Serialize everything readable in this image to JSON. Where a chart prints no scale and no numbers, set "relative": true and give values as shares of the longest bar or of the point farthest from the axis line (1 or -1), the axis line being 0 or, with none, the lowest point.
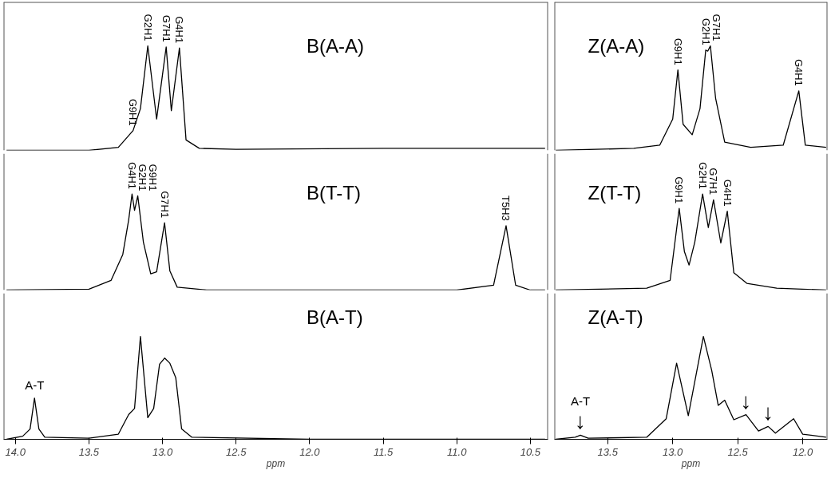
{
  "chart_data": [
    {
      "type": "line",
      "title": "B(A-A)",
      "relative": true,
      "color": "#000000",
      "grid": false,
      "tick_labels": false,
      "xlim": [
        14.08,
        10.38
      ],
      "x": [
        14.06,
        13.5,
        13.3,
        13.2,
        13.15,
        13.1,
        13.04,
        12.975,
        12.94,
        12.885,
        12.84,
        12.75,
        12.5,
        11.5,
        10.4
      ],
      "values": [
        0,
        0,
        0.03,
        0.19,
        0.4,
        1,
        0.3,
        0.99,
        0.38,
        0.98,
        0.1,
        0.02,
        0.01,
        0.02,
        0.02
      ],
      "annotations": [
        {
          "text": "G9H1",
          "x": 13.2,
          "y": 0.19
        },
        {
          "text": "G2H1",
          "x": 13.1,
          "y": 1
        },
        {
          "text": "G7H1",
          "x": 12.975,
          "y": 0.99
        },
        {
          "text": "G4H1",
          "x": 12.885,
          "y": 0.98
        }
      ]
    },
    {
      "type": "line",
      "title": "Z(A-A)",
      "relative": true,
      "color": "#000000",
      "grid": false,
      "tick_labels": false,
      "xlim": [
        13.91,
        11.81
      ],
      "x": [
        13.9,
        13.3,
        13.1,
        13.0,
        12.96,
        12.92,
        12.85,
        12.79,
        12.746,
        12.73,
        12.71,
        12.67,
        12.6,
        12.4,
        12.15,
        12.03,
        11.98,
        11.82
      ],
      "values": [
        0,
        0.02,
        0.05,
        0.3,
        0.77,
        0.25,
        0.15,
        0.4,
        0.96,
        0.95,
        1,
        0.5,
        0.08,
        0.03,
        0.05,
        0.57,
        0.05,
        0.03
      ],
      "annotations": [
        {
          "text": "G9H1",
          "x": 12.96,
          "y": 0.77
        },
        {
          "text": "G2H1",
          "x": 12.746,
          "y": 0.96
        },
        {
          "text": "G7H1",
          "x": 12.71,
          "y": 1
        },
        {
          "text": "G4H1",
          "x": 12.03,
          "y": 0.57
        }
      ]
    },
    {
      "type": "line",
      "title": "B(T-T)",
      "relative": true,
      "color": "#000000",
      "grid": false,
      "tick_labels": false,
      "xlim": [
        14.08,
        10.38
      ],
      "x": [
        14.06,
        13.5,
        13.35,
        13.27,
        13.23,
        13.207,
        13.19,
        13.168,
        13.13,
        13.08,
        13.04,
        12.986,
        12.95,
        12.9,
        12.7,
        11.0,
        10.75,
        10.665,
        10.6,
        10.5,
        10.4
      ],
      "values": [
        0,
        0.01,
        0.1,
        0.37,
        0.73,
        1,
        0.83,
        0.98,
        0.5,
        0.17,
        0.19,
        0.7,
        0.2,
        0.03,
        0,
        0,
        0.05,
        0.67,
        0.05,
        0,
        0
      ],
      "annotations": [
        {
          "text": "G4H1",
          "x": 13.207,
          "y": 1
        },
        {
          "text": "G2H1",
          "x": 13.168,
          "y": 0.98
        },
        {
          "text": "G9H1",
          "x": 13.168,
          "y": 0.98
        },
        {
          "text": "G7H1",
          "x": 12.986,
          "y": 0.7
        },
        {
          "text": "T5H3",
          "x": 10.665,
          "y": 0.67
        }
      ]
    },
    {
      "type": "line",
      "title": "Z(T-T)",
      "relative": true,
      "color": "#000000",
      "grid": false,
      "tick_labels": false,
      "xlim": [
        13.91,
        11.81
      ],
      "x": [
        13.9,
        13.2,
        13.02,
        12.95,
        12.91,
        12.874,
        12.83,
        12.77,
        12.726,
        12.686,
        12.63,
        12.58,
        12.53,
        12.43,
        12.2,
        11.82
      ],
      "values": [
        0,
        0.02,
        0.1,
        0.85,
        0.4,
        0.26,
        0.5,
        1,
        0.65,
        0.94,
        0.49,
        0.82,
        0.18,
        0.07,
        0.02,
        0
      ],
      "annotations": [
        {
          "text": "G9H1",
          "x": 12.95,
          "y": 0.85
        },
        {
          "text": "G2H1",
          "x": 12.77,
          "y": 1
        },
        {
          "text": "G7H1",
          "x": 12.686,
          "y": 0.94
        },
        {
          "text": "G4H1",
          "x": 12.58,
          "y": 0.82
        }
      ]
    },
    {
      "type": "line",
      "title": "B(A-T)",
      "relative": true,
      "color": "#000000",
      "grid": false,
      "tick_labels": "x",
      "xlabel": "ppm",
      "xlim": [
        14.08,
        10.38
      ],
      "xticks": [
        {
          "value": 14.0,
          "label": "14.0"
        },
        {
          "value": 13.5,
          "label": "13.5"
        },
        {
          "value": 13.0,
          "label": "13.0"
        },
        {
          "value": 12.5,
          "label": "12.5"
        },
        {
          "value": 12.0,
          "label": "12.0"
        },
        {
          "value": 11.5,
          "label": "11.5"
        },
        {
          "value": 11.0,
          "label": "11.0"
        },
        {
          "value": 10.5,
          "label": "10.5"
        }
      ],
      "x": [
        14.06,
        13.95,
        13.9,
        13.87,
        13.84,
        13.8,
        13.5,
        13.3,
        13.23,
        13.19,
        13.15,
        13.1,
        13.06,
        13.02,
        12.985,
        12.95,
        12.91,
        12.87,
        12.8,
        12.0,
        10.4
      ],
      "values": [
        0,
        0.03,
        0.1,
        0.4,
        0.1,
        0.02,
        0.01,
        0.05,
        0.24,
        0.3,
        1,
        0.21,
        0.3,
        0.73,
        0.79,
        0.74,
        0.6,
        0.1,
        0.02,
        0,
        0
      ],
      "annotations": [
        {
          "text": "A-T",
          "x": 13.87,
          "y": 0.4
        }
      ]
    },
    {
      "type": "line",
      "title": "Z(A-T)",
      "relative": true,
      "color": "#000000",
      "grid": false,
      "tick_labels": "x",
      "xlabel": "ppm",
      "xlim": [
        13.91,
        11.81
      ],
      "xticks": [
        {
          "value": 13.5,
          "label": "13.5"
        },
        {
          "value": 13.0,
          "label": "13.0"
        },
        {
          "value": 12.5,
          "label": "12.5"
        },
        {
          "value": 12.0,
          "label": "12.0"
        }
      ],
      "x": [
        13.9,
        13.75,
        13.71,
        13.65,
        13.2,
        13.05,
        12.97,
        12.88,
        12.764,
        12.7,
        12.65,
        12.6,
        12.53,
        12.436,
        12.34,
        12.266,
        12.21,
        12.07,
        12.0,
        11.82
      ],
      "values": [
        0,
        0.02,
        0.04,
        0.01,
        0.02,
        0.2,
        0.74,
        0.23,
        1,
        0.67,
        0.33,
        0.38,
        0.19,
        0.24,
        0.08,
        0.125,
        0.06,
        0.2,
        0.05,
        0.02
      ],
      "annotations": [
        {
          "text": "A-T",
          "x": 13.71,
          "y": 0.04
        },
        {
          "text": "↓",
          "x": 13.71,
          "y": 0.04
        },
        {
          "text": "↓",
          "x": 12.436,
          "y": 0.24
        },
        {
          "text": "↓",
          "x": 12.266,
          "y": 0.125
        }
      ]
    }
  ]
}
